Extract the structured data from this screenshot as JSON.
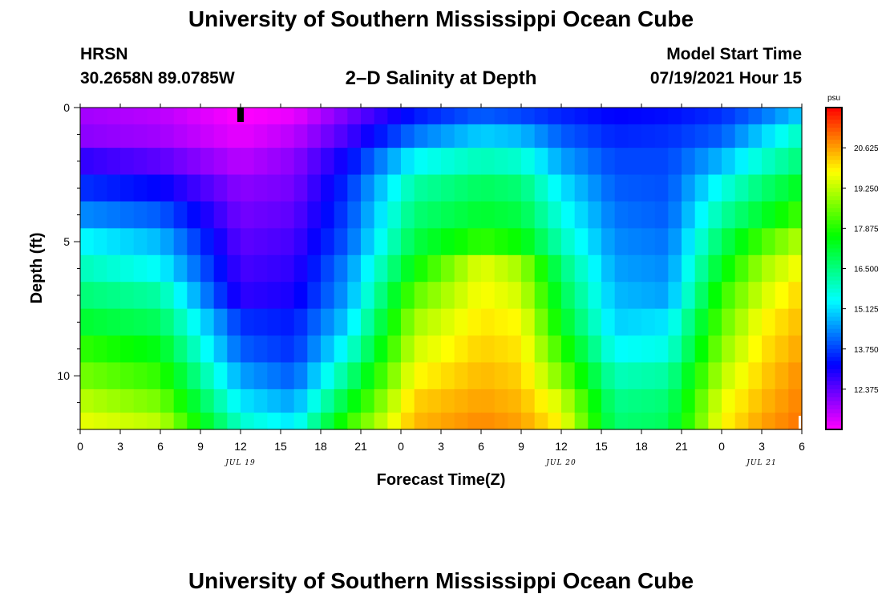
{
  "title": "University of Southern Mississippi Ocean Cube",
  "footer_title": "University of Southern Mississippi Ocean Cube",
  "station": "HRSN",
  "coordinates": "30.2658N  89.0785W",
  "subtitle": "2–D Salinity at Depth",
  "model_start_label": "Model Start Time",
  "model_start_value": "07/19/2021 Hour 15",
  "chart_data": {
    "type": "heatmap",
    "xlabel": "Forecast Time(Z)",
    "ylabel": "Depth (ft)",
    "x_hours_range": [
      0,
      54
    ],
    "x_tick_labels": [
      "0",
      "3",
      "6",
      "9",
      "12",
      "15",
      "18",
      "21",
      "0",
      "3",
      "6",
      "9",
      "12",
      "15",
      "18",
      "21",
      "0",
      "3",
      "6"
    ],
    "date_labels": [
      {
        "label": "JUL 19",
        "hour": 12
      },
      {
        "label": "JUL 20",
        "hour": 36
      },
      {
        "label": "JUL 21",
        "hour": 51
      }
    ],
    "y_range_ft": [
      0,
      12
    ],
    "y_tick_labels": [
      {
        "label": "0",
        "value": 0
      },
      {
        "label": "5",
        "value": 5
      },
      {
        "label": "10",
        "value": 10
      }
    ],
    "colorbar": {
      "unit": "psu",
      "min": 11.0,
      "max": 22.0,
      "tick_labels": [
        "20.625",
        "19.250",
        "17.875",
        "16.500",
        "15.125",
        "13.750",
        "12.375"
      ],
      "tick_values": [
        20.625,
        19.25,
        17.875,
        16.5,
        15.125,
        13.75,
        12.375
      ]
    },
    "current_time_marker_hour": 12,
    "layers_ft": [
      0.25,
      1.0,
      2.0,
      3.0,
      4.0,
      5.0,
      6.0,
      7.0,
      8.0,
      9.0,
      10.0,
      11.0,
      11.75
    ],
    "anchor_hours": [
      0,
      6,
      12,
      16,
      20,
      25,
      30,
      33,
      36,
      40,
      44,
      48,
      51,
      54
    ],
    "salinity_psu": [
      [
        11.8,
        11.6,
        11.0,
        11.2,
        12.2,
        13.4,
        14.0,
        13.8,
        13.5,
        13.2,
        13.3,
        13.6,
        14.2,
        15.0
      ],
      [
        12.0,
        11.8,
        11.2,
        11.6,
        12.6,
        14.2,
        15.0,
        14.8,
        14.0,
        13.5,
        13.6,
        14.0,
        15.0,
        16.0
      ],
      [
        12.8,
        12.4,
        11.6,
        12.0,
        13.2,
        15.4,
        16.0,
        15.8,
        14.6,
        13.8,
        13.8,
        14.8,
        15.8,
        16.6
      ],
      [
        13.6,
        13.2,
        12.0,
        12.2,
        13.6,
        16.2,
        16.8,
        16.6,
        15.2,
        14.0,
        13.9,
        15.6,
        16.6,
        17.4
      ],
      [
        14.4,
        14.0,
        12.2,
        12.4,
        13.8,
        16.6,
        17.2,
        17.0,
        15.6,
        14.2,
        14.0,
        16.2,
        17.2,
        18.2
      ],
      [
        15.4,
        14.8,
        12.4,
        12.6,
        14.0,
        17.0,
        18.0,
        17.6,
        16.0,
        14.4,
        14.2,
        16.8,
        18.2,
        19.2
      ],
      [
        16.0,
        15.4,
        12.6,
        12.8,
        14.4,
        17.6,
        19.6,
        19.0,
        16.6,
        14.6,
        14.4,
        17.4,
        19.0,
        19.8
      ],
      [
        16.6,
        16.2,
        12.8,
        13.0,
        14.6,
        18.4,
        19.8,
        19.4,
        17.0,
        14.8,
        14.6,
        18.0,
        19.4,
        20.2
      ],
      [
        17.2,
        16.8,
        13.6,
        13.4,
        15.0,
        19.0,
        20.0,
        19.8,
        17.4,
        15.0,
        15.2,
        18.4,
        19.8,
        20.4
      ],
      [
        18.0,
        17.4,
        14.0,
        13.6,
        15.6,
        19.4,
        20.2,
        20.0,
        18.0,
        15.4,
        15.6,
        18.8,
        20.0,
        20.6
      ],
      [
        18.6,
        18.0,
        14.6,
        14.0,
        16.4,
        19.8,
        20.4,
        20.2,
        18.6,
        16.0,
        16.2,
        19.2,
        20.2,
        20.8
      ],
      [
        19.2,
        18.6,
        15.2,
        14.6,
        17.2,
        20.2,
        20.6,
        20.4,
        19.4,
        16.4,
        16.6,
        19.6,
        20.4,
        20.9
      ],
      [
        19.6,
        19.2,
        15.8,
        15.2,
        18.0,
        20.4,
        20.8,
        20.6,
        19.8,
        16.6,
        16.8,
        19.8,
        20.6,
        21.0
      ]
    ]
  }
}
